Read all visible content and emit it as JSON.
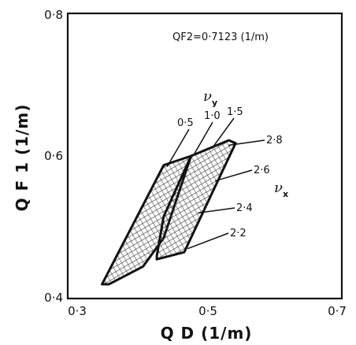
{
  "chart_data": {
    "type": "line",
    "title": "",
    "xlabel": "Q D (1/m)",
    "ylabel": "Q F 1 (1/m)",
    "xlim": [
      0.3,
      0.7
    ],
    "ylim": [
      0.4,
      0.8
    ],
    "xticks": [
      "0·3",
      "0·5",
      "0·7"
    ],
    "yticks": [
      "0·4",
      "0·6",
      "0·8"
    ],
    "annotation": "QF2=0·7123 (1/m)",
    "nu_y_symbol": "ν",
    "nu_y_sub": "y",
    "nu_x_symbol": "ν",
    "nu_x_sub": "x",
    "nu_y_labels": [
      "0·5",
      "1·0",
      "1·5"
    ],
    "nu_x_labels": [
      "2·8",
      "2·6",
      "2·4",
      "2·2"
    ],
    "regions": [
      {
        "name": "left",
        "boundary": [
          [
            0.35,
            0.42
          ],
          [
            0.44,
            0.587
          ],
          [
            0.48,
            0.6
          ],
          [
            0.44,
            0.485
          ],
          [
            0.41,
            0.445
          ],
          [
            0.36,
            0.42
          ]
        ]
      },
      {
        "name": "right",
        "boundary": [
          [
            0.43,
            0.455
          ],
          [
            0.47,
            0.465
          ],
          [
            0.545,
            0.618
          ],
          [
            0.535,
            0.622
          ],
          [
            0.48,
            0.6
          ],
          [
            0.44,
            0.515
          ],
          [
            0.43,
            0.46
          ]
        ]
      }
    ],
    "nu_y_leaders": [
      {
        "label": "0·5",
        "to": [
          0.445,
          0.585
        ]
      },
      {
        "label": "1·0",
        "to": [
          0.483,
          0.6
        ]
      },
      {
        "label": "1·5",
        "to": [
          0.51,
          0.61
        ]
      }
    ],
    "nu_x_leaders": [
      {
        "label": "2·8",
        "to": [
          0.535,
          0.615
        ]
      },
      {
        "label": "2·6",
        "to": [
          0.515,
          0.565
        ]
      },
      {
        "label": "2·4",
        "to": [
          0.49,
          0.52
        ]
      },
      {
        "label": "2·2",
        "to": [
          0.475,
          0.47
        ]
      }
    ]
  }
}
